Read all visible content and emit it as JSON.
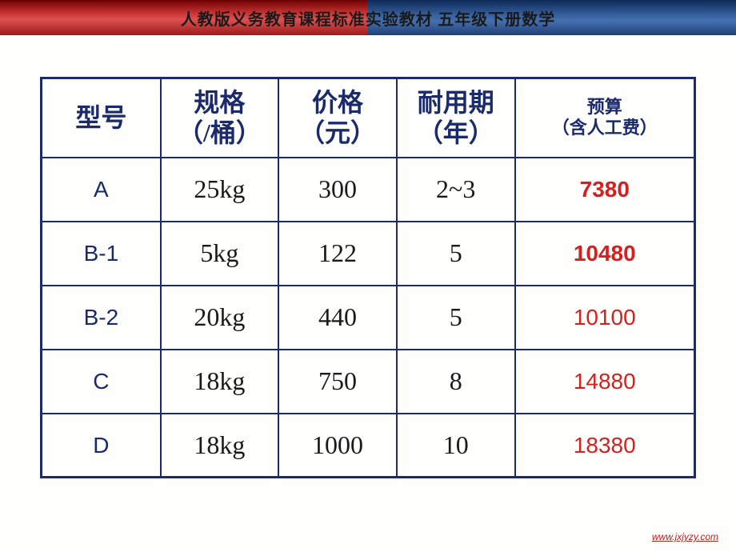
{
  "header": {
    "title": "人教版义务教育课程标准实验教材 五年级下册数学"
  },
  "table": {
    "columns": {
      "model": "型号",
      "spec": "规格\n（/桶）",
      "price": "价格\n（元）",
      "dur": "耐用期\n（年）",
      "budget_l1": "预算",
      "budget_l2": "（含人工费）"
    },
    "rows": [
      {
        "model": "A",
        "spec": "25kg",
        "price": "300",
        "dur": "2~3",
        "budget": "7380",
        "bold": true
      },
      {
        "model": "B-1",
        "spec": "5kg",
        "price": "122",
        "dur": "5",
        "budget": "10480",
        "bold": true
      },
      {
        "model": "B-2",
        "spec": "20kg",
        "price": "440",
        "dur": "5",
        "budget": "10100",
        "bold": false
      },
      {
        "model": "C",
        "spec": "18kg",
        "price": "750",
        "dur": "8",
        "budget": "14880",
        "bold": false
      },
      {
        "model": "D",
        "spec": "18kg",
        "price": "1000",
        "dur": "10",
        "budget": "18380",
        "bold": false
      }
    ]
  },
  "footer": {
    "url": "www.jxjyzy.com"
  },
  "colors": {
    "border": "#1a2a6b",
    "header_text": "#1a2a6b",
    "body_text": "#1a1a1a",
    "budget_text": "#d81e1e",
    "background": "#fefefd"
  }
}
